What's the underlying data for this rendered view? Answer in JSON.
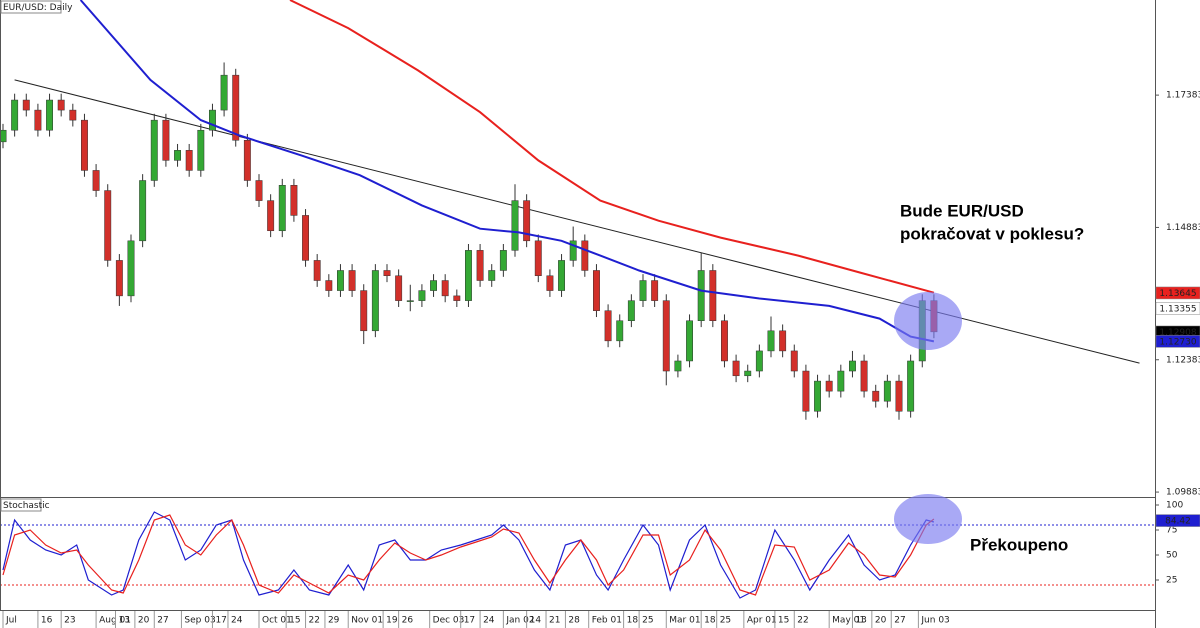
{
  "chart_data": [
    {
      "type": "candlestick",
      "title": "EUR/USD: Daily",
      "up_color": "#34a834",
      "down_color": "#d2302a",
      "wick_color": "#333333",
      "xlim": [
        0,
        297
      ],
      "ylim": [
        1.0979,
        1.1918
      ],
      "yticks": [
        1.09883,
        1.12383,
        1.14883,
        1.17383
      ],
      "xticks": [
        {
          "value": 0,
          "label": "Jul"
        },
        {
          "value": 9,
          "label": "16"
        },
        {
          "value": 15,
          "label": "23"
        },
        {
          "value": 24,
          "label": "Aug 01"
        },
        {
          "value": 29,
          "label": "13"
        },
        {
          "value": 34,
          "label": "20"
        },
        {
          "value": 39,
          "label": "27"
        },
        {
          "value": 46,
          "label": "Sep 03"
        },
        {
          "value": 54,
          "label": "17"
        },
        {
          "value": 58,
          "label": "24"
        },
        {
          "value": 66,
          "label": "Oct 01"
        },
        {
          "value": 73,
          "label": "15"
        },
        {
          "value": 78,
          "label": "22"
        },
        {
          "value": 83,
          "label": "29"
        },
        {
          "value": 89,
          "label": "Nov 01"
        },
        {
          "value": 98,
          "label": "19"
        },
        {
          "value": 102,
          "label": "26"
        },
        {
          "value": 110,
          "label": "Dec 03"
        },
        {
          "value": 118,
          "label": "17"
        },
        {
          "value": 123,
          "label": "24"
        },
        {
          "value": 129,
          "label": "Jan 02"
        },
        {
          "value": 135,
          "label": "14"
        },
        {
          "value": 140,
          "label": "21"
        },
        {
          "value": 145,
          "label": "28"
        },
        {
          "value": 151,
          "label": "Feb 01"
        },
        {
          "value": 160,
          "label": "18"
        },
        {
          "value": 164,
          "label": "25"
        },
        {
          "value": 171,
          "label": "Mar 01"
        },
        {
          "value": 180,
          "label": "18"
        },
        {
          "value": 184,
          "label": "25"
        },
        {
          "value": 191,
          "label": "Apr 01"
        },
        {
          "value": 199,
          "label": "15"
        },
        {
          "value": 204,
          "label": "22"
        },
        {
          "value": 213,
          "label": "May 01"
        },
        {
          "value": 219,
          "label": "13"
        },
        {
          "value": 224,
          "label": "20"
        },
        {
          "value": 229,
          "label": "27"
        },
        {
          "value": 236,
          "label": "Jun 03"
        }
      ],
      "x": [
        0,
        3,
        6,
        9,
        12,
        15,
        18,
        21,
        24,
        27,
        30,
        33,
        36,
        39,
        42,
        45,
        48,
        51,
        54,
        57,
        60,
        63,
        66,
        69,
        72,
        75,
        78,
        81,
        84,
        87,
        90,
        93,
        96,
        99,
        102,
        105,
        108,
        111,
        114,
        117,
        120,
        123,
        126,
        129,
        132,
        135,
        138,
        141,
        144,
        147,
        150,
        153,
        156,
        159,
        162,
        165,
        168,
        171,
        174,
        177,
        180,
        183,
        186,
        189,
        192,
        195,
        198,
        201,
        204,
        207,
        210,
        213,
        216,
        219,
        222,
        225,
        228,
        231,
        234,
        237,
        240
      ],
      "candles": [
        [
          1.165,
          1.1684,
          1.1638,
          1.1672
        ],
        [
          1.1672,
          1.1741,
          1.166,
          1.1729
        ],
        [
          1.1729,
          1.1741,
          1.1698,
          1.171
        ],
        [
          1.171,
          1.1722,
          1.166,
          1.1672
        ],
        [
          1.1672,
          1.1741,
          1.166,
          1.1729
        ],
        [
          1.1729,
          1.1741,
          1.1698,
          1.171
        ],
        [
          1.171,
          1.1722,
          1.1679,
          1.1691
        ],
        [
          1.1691,
          1.1703,
          1.1584,
          1.1596
        ],
        [
          1.1596,
          1.1608,
          1.1546,
          1.1558
        ],
        [
          1.1558,
          1.157,
          1.1414,
          1.1426
        ],
        [
          1.1426,
          1.1438,
          1.134,
          1.1359
        ],
        [
          1.1359,
          1.1475,
          1.1347,
          1.1463
        ],
        [
          1.1463,
          1.1589,
          1.1451,
          1.1577
        ],
        [
          1.1577,
          1.1703,
          1.1565,
          1.1691
        ],
        [
          1.1691,
          1.1703,
          1.1603,
          1.1615
        ],
        [
          1.1615,
          1.1646,
          1.1603,
          1.1634
        ],
        [
          1.1634,
          1.1646,
          1.1584,
          1.1596
        ],
        [
          1.1596,
          1.1684,
          1.1584,
          1.1672
        ],
        [
          1.1672,
          1.1722,
          1.166,
          1.171
        ],
        [
          1.171,
          1.18,
          1.1698,
          1.1776
        ],
        [
          1.1776,
          1.1788,
          1.1641,
          1.1653
        ],
        [
          1.1653,
          1.1665,
          1.1565,
          1.1577
        ],
        [
          1.1577,
          1.1589,
          1.1527,
          1.1539
        ],
        [
          1.1539,
          1.1551,
          1.147,
          1.1482
        ],
        [
          1.1482,
          1.158,
          1.147,
          1.1568
        ],
        [
          1.1568,
          1.158,
          1.1499,
          1.1511
        ],
        [
          1.1511,
          1.1523,
          1.1414,
          1.1426
        ],
        [
          1.1426,
          1.1438,
          1.1376,
          1.1388
        ],
        [
          1.1388,
          1.14,
          1.1357,
          1.1369
        ],
        [
          1.1369,
          1.1419,
          1.1357,
          1.1407
        ],
        [
          1.1407,
          1.1419,
          1.1357,
          1.1369
        ],
        [
          1.1369,
          1.1381,
          1.1268,
          1.1293
        ],
        [
          1.1293,
          1.1419,
          1.1281,
          1.1407
        ],
        [
          1.1407,
          1.1419,
          1.1385,
          1.1397
        ],
        [
          1.1397,
          1.1409,
          1.1338,
          1.135
        ],
        [
          1.135,
          1.138,
          1.133,
          1.135
        ],
        [
          1.135,
          1.1381,
          1.1338,
          1.1369
        ],
        [
          1.1369,
          1.14,
          1.1357,
          1.1388
        ],
        [
          1.1388,
          1.14,
          1.1347,
          1.1359
        ],
        [
          1.1359,
          1.1371,
          1.1338,
          1.135
        ],
        [
          1.135,
          1.1457,
          1.1338,
          1.1445
        ],
        [
          1.1445,
          1.1457,
          1.1376,
          1.1388
        ],
        [
          1.1388,
          1.1419,
          1.1376,
          1.1407
        ],
        [
          1.1407,
          1.1457,
          1.1395,
          1.1445
        ],
        [
          1.1445,
          1.157,
          1.1433,
          1.1539
        ],
        [
          1.1539,
          1.1551,
          1.1451,
          1.1463
        ],
        [
          1.1463,
          1.1475,
          1.1385,
          1.1397
        ],
        [
          1.1397,
          1.1409,
          1.1357,
          1.1369
        ],
        [
          1.1369,
          1.1438,
          1.1357,
          1.1426
        ],
        [
          1.1426,
          1.149,
          1.1414,
          1.1463
        ],
        [
          1.1463,
          1.1475,
          1.1395,
          1.1407
        ],
        [
          1.1407,
          1.1419,
          1.1319,
          1.1331
        ],
        [
          1.1331,
          1.1343,
          1.1262,
          1.1274
        ],
        [
          1.1274,
          1.1324,
          1.1262,
          1.1312
        ],
        [
          1.1312,
          1.1362,
          1.13,
          1.135
        ],
        [
          1.135,
          1.14,
          1.1338,
          1.1388
        ],
        [
          1.1388,
          1.14,
          1.1338,
          1.135
        ],
        [
          1.135,
          1.1362,
          1.119,
          1.1217
        ],
        [
          1.1217,
          1.1248,
          1.1205,
          1.1236
        ],
        [
          1.1236,
          1.1324,
          1.1224,
          1.1312
        ],
        [
          1.1312,
          1.144,
          1.13,
          1.1407
        ],
        [
          1.1407,
          1.1419,
          1.13,
          1.1312
        ],
        [
          1.1312,
          1.1324,
          1.1224,
          1.1236
        ],
        [
          1.1236,
          1.1248,
          1.1196,
          1.1208
        ],
        [
          1.1208,
          1.1229,
          1.1196,
          1.1217
        ],
        [
          1.1217,
          1.1267,
          1.1205,
          1.1255
        ],
        [
          1.1255,
          1.132,
          1.1243,
          1.1293
        ],
        [
          1.1293,
          1.1305,
          1.1243,
          1.1255
        ],
        [
          1.1255,
          1.1267,
          1.1205,
          1.1217
        ],
        [
          1.1217,
          1.1229,
          1.1125,
          1.1141
        ],
        [
          1.1141,
          1.121,
          1.1129,
          1.1198
        ],
        [
          1.1198,
          1.121,
          1.1167,
          1.1179
        ],
        [
          1.1179,
          1.1229,
          1.1167,
          1.1217
        ],
        [
          1.1217,
          1.1255,
          1.1205,
          1.1236
        ],
        [
          1.1236,
          1.1248,
          1.1167,
          1.1179
        ],
        [
          1.1179,
          1.1191,
          1.1148,
          1.116
        ],
        [
          1.116,
          1.121,
          1.1148,
          1.1198
        ],
        [
          1.1198,
          1.121,
          1.1125,
          1.1141
        ],
        [
          1.1141,
          1.1248,
          1.1129,
          1.1236
        ],
        [
          1.1236,
          1.1362,
          1.1224,
          1.135
        ],
        [
          1.135,
          1.1362,
          1.1279,
          1.1291
        ]
      ],
      "moving_averages": [
        {
          "color": "#1f1fd0",
          "x": [
            20,
            38,
            51,
            61,
            77,
            92,
            108,
            123,
            133,
            144,
            154,
            164,
            180,
            195,
            213,
            226,
            234,
            240
          ],
          "values": [
            1.1918,
            1.1767,
            1.1691,
            1.1662,
            1.1624,
            1.1587,
            1.153,
            1.1486,
            1.1479,
            1.1463,
            1.1435,
            1.1407,
            1.1369,
            1.1354,
            1.134,
            1.1316,
            1.1282,
            1.1273
          ]
        },
        {
          "color": "#e8211e",
          "x": [
            74,
            89,
            107,
            123,
            138,
            154,
            169,
            185,
            205,
            221,
            240
          ],
          "values": [
            1.1918,
            1.1865,
            1.1785,
            1.1706,
            1.1615,
            1.1539,
            1.1501,
            1.1469,
            1.1435,
            1.1403,
            1.1365
          ]
        }
      ],
      "trendline": {
        "color": "#222222",
        "x": [
          3,
          293
        ],
        "values": [
          1.1767,
          1.1232
        ]
      },
      "price_labels": [
        {
          "value": 1.13645,
          "color": "#e8211e",
          "text_color": "#ffffff"
        },
        {
          "value": 1.13355,
          "color": "#ffffff",
          "text_color": "#000000"
        },
        {
          "value": 1.12908,
          "color": "#000000",
          "text_color": "#ffffff"
        },
        {
          "value": 1.1273,
          "label": "1.12730",
          "color": "#1f1fd0",
          "text_color": "#ffffff"
        }
      ],
      "annotations": [
        "Bude EUR/USD",
        "pokračovat v poklesu?"
      ]
    },
    {
      "type": "line",
      "title": "Stochastic",
      "xlim": [
        0,
        297
      ],
      "ylim": [
        -5,
        107
      ],
      "yticks": [
        25,
        50,
        75,
        100
      ],
      "x": [
        0,
        3,
        7,
        11,
        15,
        19,
        22,
        28,
        31,
        35,
        39,
        43,
        47,
        51,
        55,
        59,
        62,
        66,
        71,
        75,
        79,
        84,
        89,
        93,
        97,
        101,
        105,
        109,
        113,
        118,
        122,
        126,
        129,
        133,
        137,
        141,
        145,
        149,
        153,
        156,
        160,
        165,
        169,
        172,
        177,
        181,
        185,
        190,
        194,
        199,
        204,
        208,
        213,
        218,
        222,
        226,
        230,
        234,
        238,
        240
      ],
      "series": [
        {
          "color": "#1f1fd0",
          "values": [
            35,
            85,
            65,
            55,
            50,
            60,
            25,
            10,
            15,
            65,
            93,
            85,
            45,
            55,
            80,
            85,
            45,
            10,
            15,
            35,
            15,
            10,
            40,
            15,
            60,
            65,
            45,
            45,
            55,
            60,
            65,
            70,
            80,
            65,
            35,
            15,
            60,
            65,
            30,
            15,
            45,
            80,
            60,
            15,
            65,
            80,
            40,
            7,
            15,
            75,
            45,
            15,
            45,
            70,
            40,
            25,
            30,
            60,
            85,
            83
          ]
        },
        {
          "color": "#e8211e",
          "values": [
            30,
            70,
            75,
            60,
            52,
            55,
            40,
            15,
            12,
            45,
            85,
            90,
            60,
            50,
            70,
            85,
            60,
            20,
            12,
            30,
            22,
            12,
            30,
            25,
            45,
            62,
            52,
            45,
            50,
            58,
            63,
            68,
            76,
            72,
            45,
            22,
            45,
            65,
            45,
            20,
            35,
            70,
            70,
            30,
            45,
            75,
            55,
            15,
            10,
            60,
            58,
            25,
            35,
            62,
            50,
            30,
            28,
            50,
            80,
            86
          ]
        }
      ],
      "levels": [
        {
          "value": 80,
          "color": "#1f1fd0"
        },
        {
          "value": 20,
          "color": "#e8211e"
        }
      ],
      "price_labels": [
        {
          "value": 84.42,
          "color": "#1f1fd0",
          "text_color": "#ffffff"
        }
      ],
      "annotations": [
        "Překoupeno"
      ]
    }
  ]
}
